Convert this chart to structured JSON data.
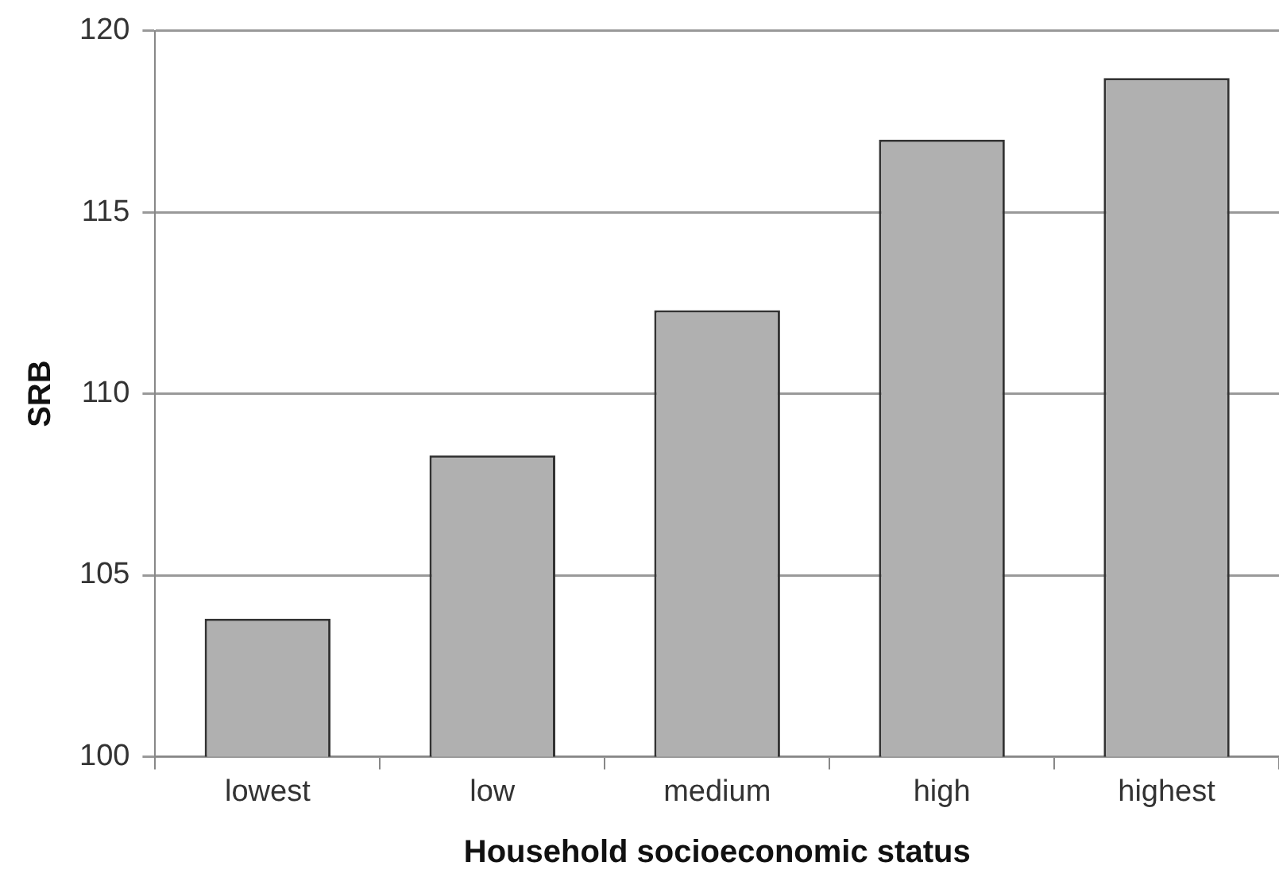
{
  "chart_data": {
    "type": "bar",
    "xlabel": "Household socioeconomic status",
    "ylabel": "SRB",
    "categories": [
      "lowest",
      "low",
      "medium",
      "high",
      "highest"
    ],
    "values": [
      103.8,
      108.3,
      112.3,
      117.0,
      118.7
    ],
    "color": "#b0b0b0",
    "ylim": [
      100,
      120
    ],
    "yticks": [
      100,
      105,
      110,
      115,
      120
    ],
    "grid": "y",
    "legend": false
  }
}
